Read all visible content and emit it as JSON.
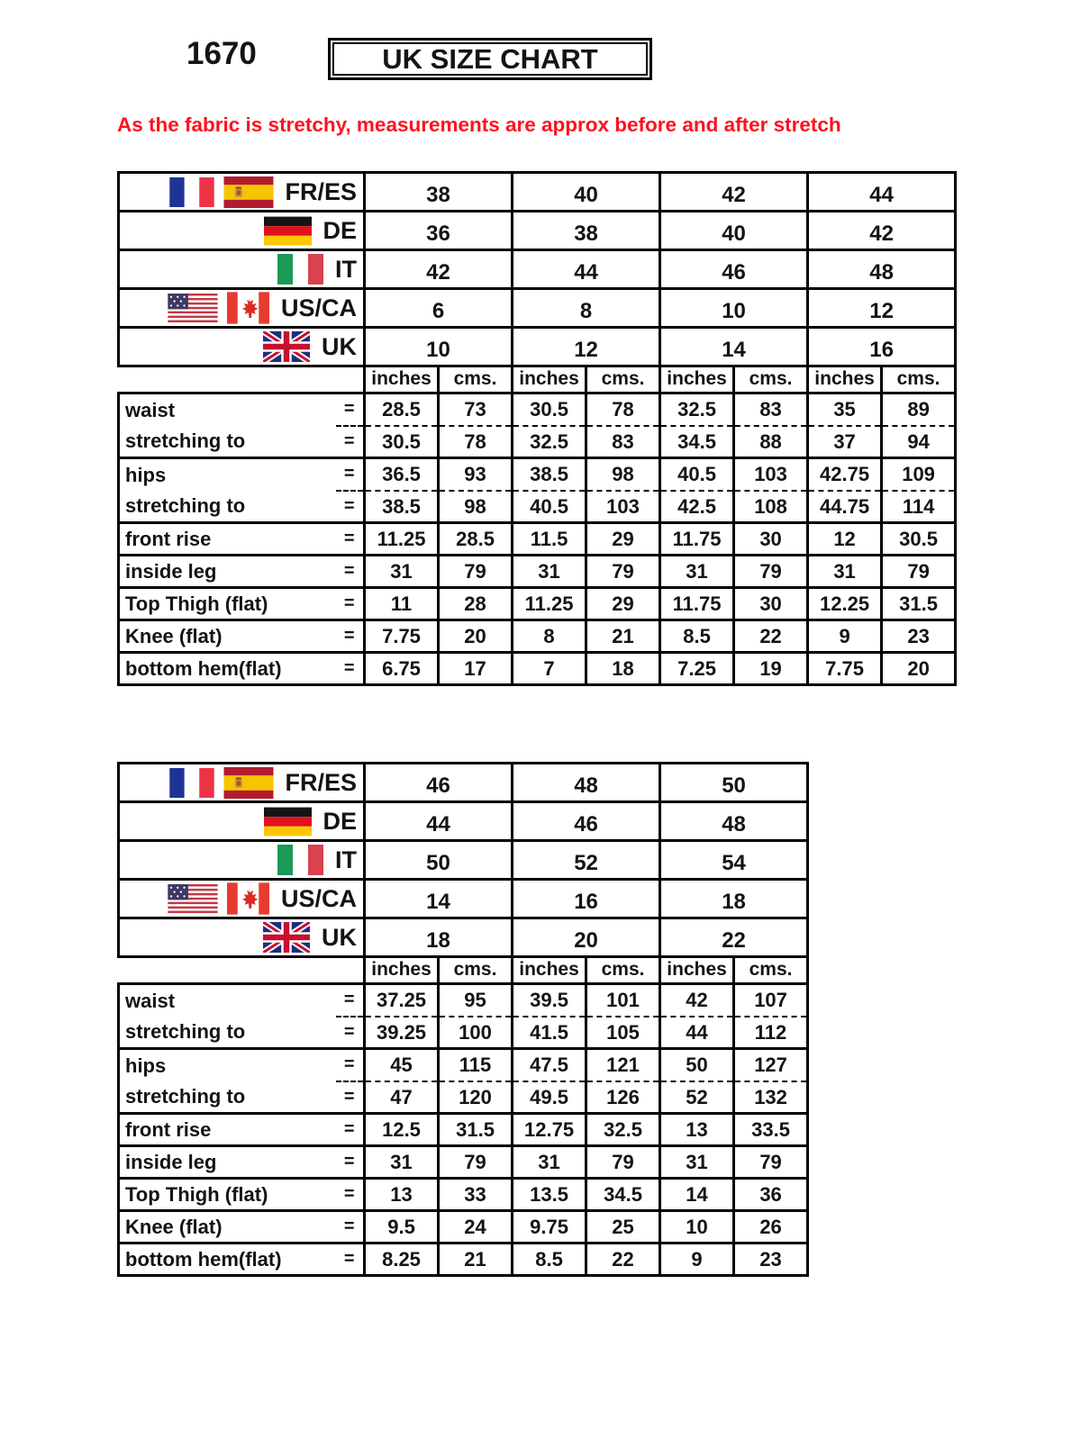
{
  "page": {
    "code": "1670",
    "title": "UK SIZE CHART",
    "note": "As the fabric is stretchy, measurements are approx before and after stretch"
  },
  "colors": {
    "note_red": "#fd1120",
    "border": "#000000",
    "text": "#141414"
  },
  "labels": {
    "inches": "inches",
    "cms": "cms.",
    "equals": "="
  },
  "size_systems": [
    {
      "key": "fr_es",
      "label": "FR/ES",
      "flags": [
        "france",
        "spain"
      ]
    },
    {
      "key": "de",
      "label": "DE",
      "flags": [
        "germany"
      ]
    },
    {
      "key": "it",
      "label": "IT",
      "flags": [
        "italy"
      ]
    },
    {
      "key": "us_ca",
      "label": "US/CA",
      "flags": [
        "usa",
        "canada"
      ]
    },
    {
      "key": "uk",
      "label": "UK",
      "flags": [
        "uk"
      ]
    }
  ],
  "tables": [
    {
      "name": "uk-sizes-10-16",
      "sizes": {
        "fr_es": [
          "38",
          "40",
          "42",
          "44"
        ],
        "de": [
          "36",
          "38",
          "40",
          "42"
        ],
        "it": [
          "42",
          "44",
          "46",
          "48"
        ],
        "us_ca": [
          "6",
          "8",
          "10",
          "12"
        ],
        "uk": [
          "10",
          "12",
          "14",
          "16"
        ]
      },
      "measurements": [
        {
          "label": "waist",
          "pair_start": true,
          "values": [
            [
              "28.5",
              "73"
            ],
            [
              "30.5",
              "78"
            ],
            [
              "32.5",
              "83"
            ],
            [
              "35",
              "89"
            ]
          ]
        },
        {
          "label": "stretching to",
          "pair_end": true,
          "values": [
            [
              "30.5",
              "78"
            ],
            [
              "32.5",
              "83"
            ],
            [
              "34.5",
              "88"
            ],
            [
              "37",
              "94"
            ]
          ]
        },
        {
          "label": "hips",
          "pair_start": true,
          "values": [
            [
              "36.5",
              "93"
            ],
            [
              "38.5",
              "98"
            ],
            [
              "40.5",
              "103"
            ],
            [
              "42.75",
              "109"
            ]
          ]
        },
        {
          "label": "stretching to",
          "pair_end": true,
          "values": [
            [
              "38.5",
              "98"
            ],
            [
              "40.5",
              "103"
            ],
            [
              "42.5",
              "108"
            ],
            [
              "44.75",
              "114"
            ]
          ]
        },
        {
          "label": "front rise",
          "values": [
            [
              "11.25",
              "28.5"
            ],
            [
              "11.5",
              "29"
            ],
            [
              "11.75",
              "30"
            ],
            [
              "12",
              "30.5"
            ]
          ]
        },
        {
          "label": "inside leg",
          "values": [
            [
              "31",
              "79"
            ],
            [
              "31",
              "79"
            ],
            [
              "31",
              "79"
            ],
            [
              "31",
              "79"
            ]
          ]
        },
        {
          "label": "Top Thigh (flat)",
          "values": [
            [
              "11",
              "28"
            ],
            [
              "11.25",
              "29"
            ],
            [
              "11.75",
              "30"
            ],
            [
              "12.25",
              "31.5"
            ]
          ]
        },
        {
          "label": "Knee (flat)",
          "values": [
            [
              "7.75",
              "20"
            ],
            [
              "8",
              "21"
            ],
            [
              "8.5",
              "22"
            ],
            [
              "9",
              "23"
            ]
          ]
        },
        {
          "label": "bottom hem(flat)",
          "values": [
            [
              "6.75",
              "17"
            ],
            [
              "7",
              "18"
            ],
            [
              "7.25",
              "19"
            ],
            [
              "7.75",
              "20"
            ]
          ]
        }
      ]
    },
    {
      "name": "uk-sizes-18-22",
      "sizes": {
        "fr_es": [
          "46",
          "48",
          "50"
        ],
        "de": [
          "44",
          "46",
          "48"
        ],
        "it": [
          "50",
          "52",
          "54"
        ],
        "us_ca": [
          "14",
          "16",
          "18"
        ],
        "uk": [
          "18",
          "20",
          "22"
        ]
      },
      "measurements": [
        {
          "label": "waist",
          "pair_start": true,
          "values": [
            [
              "37.25",
              "95"
            ],
            [
              "39.5",
              "101"
            ],
            [
              "42",
              "107"
            ]
          ]
        },
        {
          "label": "stretching to",
          "pair_end": true,
          "values": [
            [
              "39.25",
              "100"
            ],
            [
              "41.5",
              "105"
            ],
            [
              "44",
              "112"
            ]
          ]
        },
        {
          "label": "hips",
          "pair_start": true,
          "values": [
            [
              "45",
              "115"
            ],
            [
              "47.5",
              "121"
            ],
            [
              "50",
              "127"
            ]
          ]
        },
        {
          "label": "stretching to",
          "pair_end": true,
          "values": [
            [
              "47",
              "120"
            ],
            [
              "49.5",
              "126"
            ],
            [
              "52",
              "132"
            ]
          ]
        },
        {
          "label": "front rise",
          "values": [
            [
              "12.5",
              "31.5"
            ],
            [
              "12.75",
              "32.5"
            ],
            [
              "13",
              "33.5"
            ]
          ]
        },
        {
          "label": "inside leg",
          "values": [
            [
              "31",
              "79"
            ],
            [
              "31",
              "79"
            ],
            [
              "31",
              "79"
            ]
          ]
        },
        {
          "label": "Top Thigh (flat)",
          "values": [
            [
              "13",
              "33"
            ],
            [
              "13.5",
              "34.5"
            ],
            [
              "14",
              "36"
            ]
          ]
        },
        {
          "label": "Knee (flat)",
          "values": [
            [
              "9.5",
              "24"
            ],
            [
              "9.75",
              "25"
            ],
            [
              "10",
              "26"
            ]
          ]
        },
        {
          "label": "bottom hem(flat)",
          "values": [
            [
              "8.25",
              "21"
            ],
            [
              "8.5",
              "22"
            ],
            [
              "9",
              "23"
            ]
          ]
        }
      ]
    }
  ]
}
